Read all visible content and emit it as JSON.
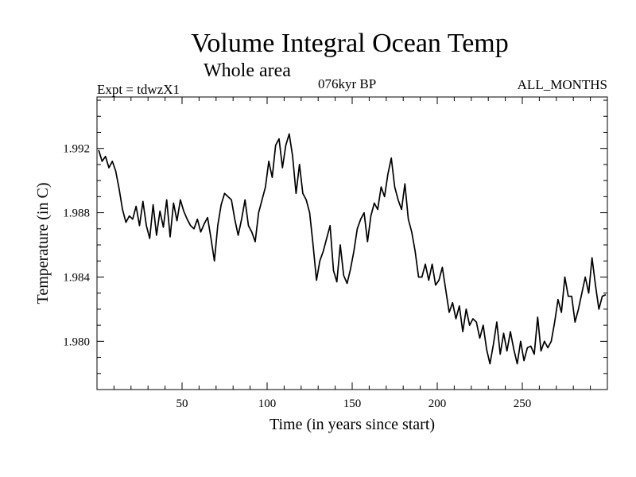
{
  "header": {
    "title": "Volume Integral Ocean Temp",
    "subtitle": "Whole area",
    "experiment": "Expt = tdwzX1",
    "period": "076kyr BP",
    "months": "ALL_MONTHS"
  },
  "chart_data": {
    "type": "line",
    "title": "Volume Integral Ocean Temp",
    "subtitle": "Whole area",
    "xlabel": "Time (in years since start)",
    "ylabel": "Temperature (in C)",
    "xlim": [
      0,
      300
    ],
    "ylim": [
      1.977,
      1.9952
    ],
    "xticks": [
      50,
      100,
      150,
      200,
      250
    ],
    "yticks": [
      1.98,
      1.984,
      1.988,
      1.992
    ],
    "xtick_labels": [
      "50",
      "100",
      "150",
      "200",
      "250"
    ],
    "ytick_labels": [
      "1.980",
      "1.984",
      "1.988",
      "1.992"
    ],
    "grid": false,
    "series": [
      {
        "name": "Volume Integral Ocean Temp",
        "color": "#000000",
        "x": [
          1,
          3,
          5,
          7,
          9,
          11,
          13,
          15,
          17,
          19,
          21,
          23,
          25,
          27,
          29,
          31,
          33,
          35,
          37,
          39,
          41,
          43,
          45,
          47,
          49,
          51,
          53,
          55,
          57,
          59,
          61,
          63,
          65,
          67,
          69,
          71,
          73,
          75,
          77,
          79,
          81,
          83,
          85,
          87,
          89,
          91,
          93,
          95,
          97,
          99,
          101,
          103,
          105,
          107,
          109,
          111,
          113,
          115,
          117,
          119,
          121,
          123,
          125,
          127,
          129,
          131,
          133,
          135,
          137,
          139,
          141,
          143,
          145,
          147,
          149,
          151,
          153,
          155,
          157,
          159,
          161,
          163,
          165,
          167,
          169,
          171,
          173,
          175,
          177,
          179,
          181,
          183,
          185,
          187,
          189,
          191,
          193,
          195,
          197,
          199,
          201,
          203,
          205,
          207,
          209,
          211,
          213,
          215,
          217,
          219,
          221,
          223,
          225,
          227,
          229,
          231,
          233,
          235,
          237,
          239,
          241,
          243,
          245,
          247,
          249,
          251,
          253,
          255,
          257,
          259,
          261,
          263,
          265,
          267,
          269,
          271,
          273,
          275,
          277,
          279,
          281,
          283,
          285,
          287,
          289,
          291,
          293,
          295,
          297,
          299
        ],
        "values": [
          1.9919,
          1.9912,
          1.9915,
          1.9908,
          1.9912,
          1.9906,
          1.9895,
          1.9882,
          1.9874,
          1.9878,
          1.9876,
          1.9884,
          1.9872,
          1.9887,
          1.9872,
          1.9864,
          1.9885,
          1.9866,
          1.9881,
          1.9871,
          1.9888,
          1.9865,
          1.9886,
          1.9875,
          1.9888,
          1.9881,
          1.9876,
          1.9872,
          1.987,
          1.9876,
          1.9868,
          1.9873,
          1.9877,
          1.9864,
          1.985,
          1.9872,
          1.9885,
          1.9892,
          1.989,
          1.9888,
          1.9876,
          1.9866,
          1.9876,
          1.9888,
          1.9872,
          1.9868,
          1.9862,
          1.988,
          1.9888,
          1.9896,
          1.9912,
          1.9902,
          1.9922,
          1.9926,
          1.9908,
          1.9922,
          1.9929,
          1.9915,
          1.9892,
          1.991,
          1.9892,
          1.9888,
          1.988,
          1.986,
          1.9838,
          1.985,
          1.9856,
          1.9864,
          1.9872,
          1.9844,
          1.9837,
          1.986,
          1.9841,
          1.9836,
          1.9845,
          1.9856,
          1.987,
          1.9876,
          1.988,
          1.9862,
          1.9878,
          1.9886,
          1.9882,
          1.9896,
          1.989,
          1.9904,
          1.9914,
          1.9896,
          1.9888,
          1.9882,
          1.9898,
          1.9876,
          1.9868,
          1.9856,
          1.984,
          1.984,
          1.9848,
          1.9838,
          1.9848,
          1.9835,
          1.9838,
          1.9846,
          1.9832,
          1.9818,
          1.9824,
          1.9814,
          1.9822,
          1.9806,
          1.982,
          1.981,
          1.9814,
          1.9812,
          1.9802,
          1.981,
          1.9795,
          1.9786,
          1.9798,
          1.9812,
          1.9792,
          1.9805,
          1.9794,
          1.9806,
          1.9795,
          1.9786,
          1.98,
          1.9788,
          1.9796,
          1.9797,
          1.9792,
          1.9815,
          1.9794,
          1.98,
          1.9796,
          1.98,
          1.9812,
          1.9826,
          1.9818,
          1.984,
          1.9828,
          1.9828,
          1.9812,
          1.982,
          1.983,
          1.984,
          1.983,
          1.9852,
          1.9835,
          1.982,
          1.9828,
          1.9829
        ]
      }
    ]
  }
}
